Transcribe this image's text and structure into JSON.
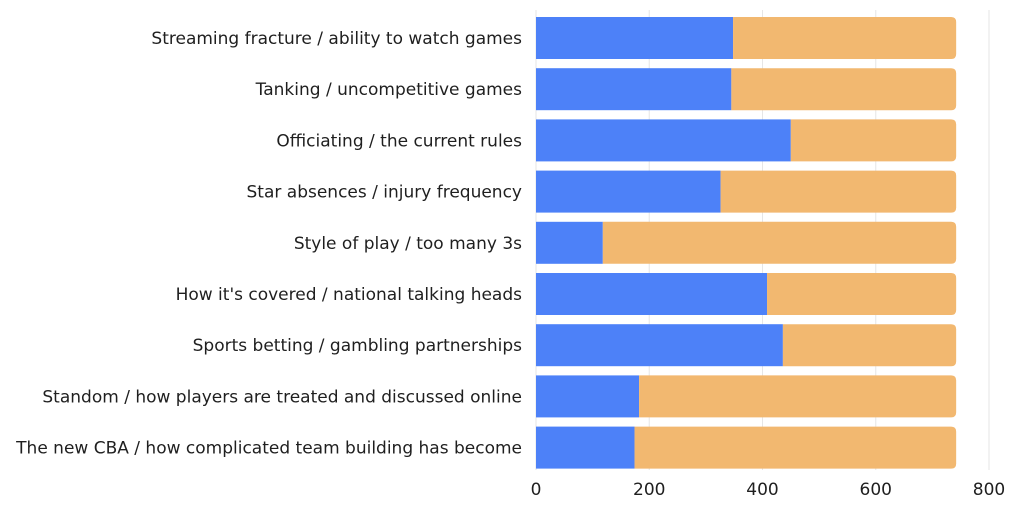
{
  "chart_data": {
    "type": "bar",
    "orientation": "horizontal",
    "stacked": true,
    "title": "",
    "xlabel": "",
    "ylabel": "",
    "categories": [
      "Streaming fracture / ability to watch games",
      "Tanking / uncompetitive games",
      "Officiating / the current rules",
      "Star absences / injury frequency",
      "Style of play / too many 3s",
      "How it's covered / national talking heads",
      "Sports betting / gambling partnerships",
      "Standom / how players are treated and discussed online",
      "The new CBA / how complicated team building has become"
    ],
    "series": [
      {
        "values": [
          348,
          345,
          450,
          326,
          118,
          408,
          436,
          182,
          174
        ],
        "color": "#4d81f8"
      },
      {
        "values": [
          394,
          397,
          292,
          416,
          624,
          334,
          306,
          560,
          568
        ],
        "color": "#f2b870"
      }
    ],
    "xlim": [
      0,
      800
    ],
    "xticks": [
      0,
      200,
      400,
      600,
      800
    ],
    "grid": true,
    "legend": "none"
  }
}
